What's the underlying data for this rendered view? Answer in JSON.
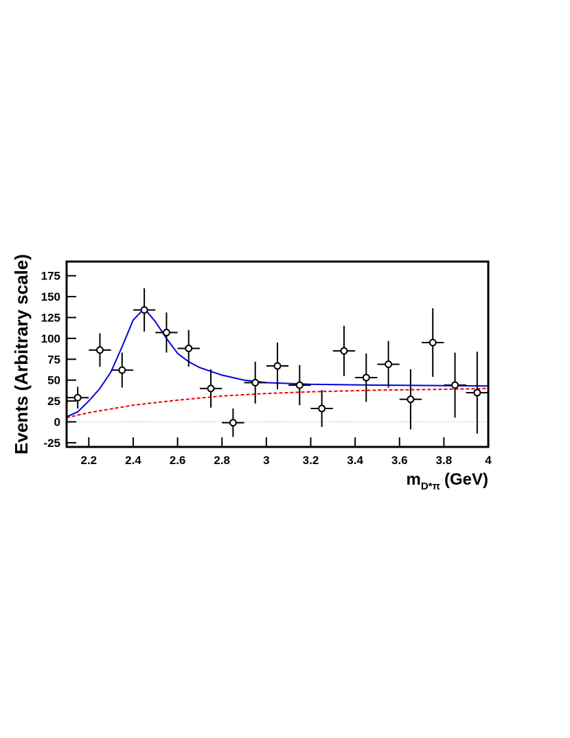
{
  "chart_data": {
    "type": "errorbar",
    "ylabel": "Events (Arbitrary scale)",
    "xlabel": {
      "main": "m",
      "subscript": "D*π",
      "suffix": "(GeV)"
    },
    "xlim": [
      2.1,
      4.0
    ],
    "ylim": [
      -30,
      192
    ],
    "xticks": [
      2.2,
      2.4,
      2.6,
      2.8,
      3,
      3.2,
      3.4,
      3.6,
      3.8,
      4
    ],
    "yticks": [
      -25,
      0,
      25,
      50,
      75,
      100,
      125,
      150,
      175
    ],
    "zero_line": 0,
    "marker_color": "#000000",
    "x": [
      2.15,
      2.25,
      2.35,
      2.45,
      2.55,
      2.65,
      2.75,
      2.85,
      2.95,
      3.05,
      3.15,
      3.25,
      3.35,
      3.45,
      3.55,
      3.65,
      3.75,
      3.85,
      3.95
    ],
    "values": [
      29,
      86,
      62,
      134,
      107,
      88,
      40,
      -1,
      47,
      67,
      44,
      16,
      85,
      53,
      69,
      27,
      95,
      44,
      35
    ],
    "errors": [
      13,
      20,
      21,
      26,
      24,
      22,
      23,
      17,
      25,
      28,
      24,
      22,
      30,
      29,
      28,
      36,
      41,
      39,
      49
    ],
    "xerr": 0.05,
    "fit_curves": [
      {
        "color": "#0000dd",
        "dashed": false,
        "x": [
          2.1,
          2.15,
          2.2,
          2.25,
          2.3,
          2.35,
          2.4,
          2.45,
          2.5,
          2.55,
          2.6,
          2.65,
          2.7,
          2.8,
          2.9,
          3.0,
          3.2,
          3.5,
          4.0
        ],
        "values": [
          6,
          12,
          25,
          40,
          60,
          90,
          122,
          136,
          120,
          100,
          82,
          72,
          65,
          56,
          50,
          47,
          45,
          44,
          43
        ]
      },
      {
        "color": "#ee0000",
        "dashed": true,
        "x": [
          2.1,
          2.2,
          2.4,
          2.6,
          2.8,
          3.0,
          3.2,
          3.5,
          3.8,
          4.0
        ],
        "values": [
          5,
          11,
          20,
          26,
          31,
          34,
          36,
          38,
          39,
          40
        ]
      }
    ]
  }
}
